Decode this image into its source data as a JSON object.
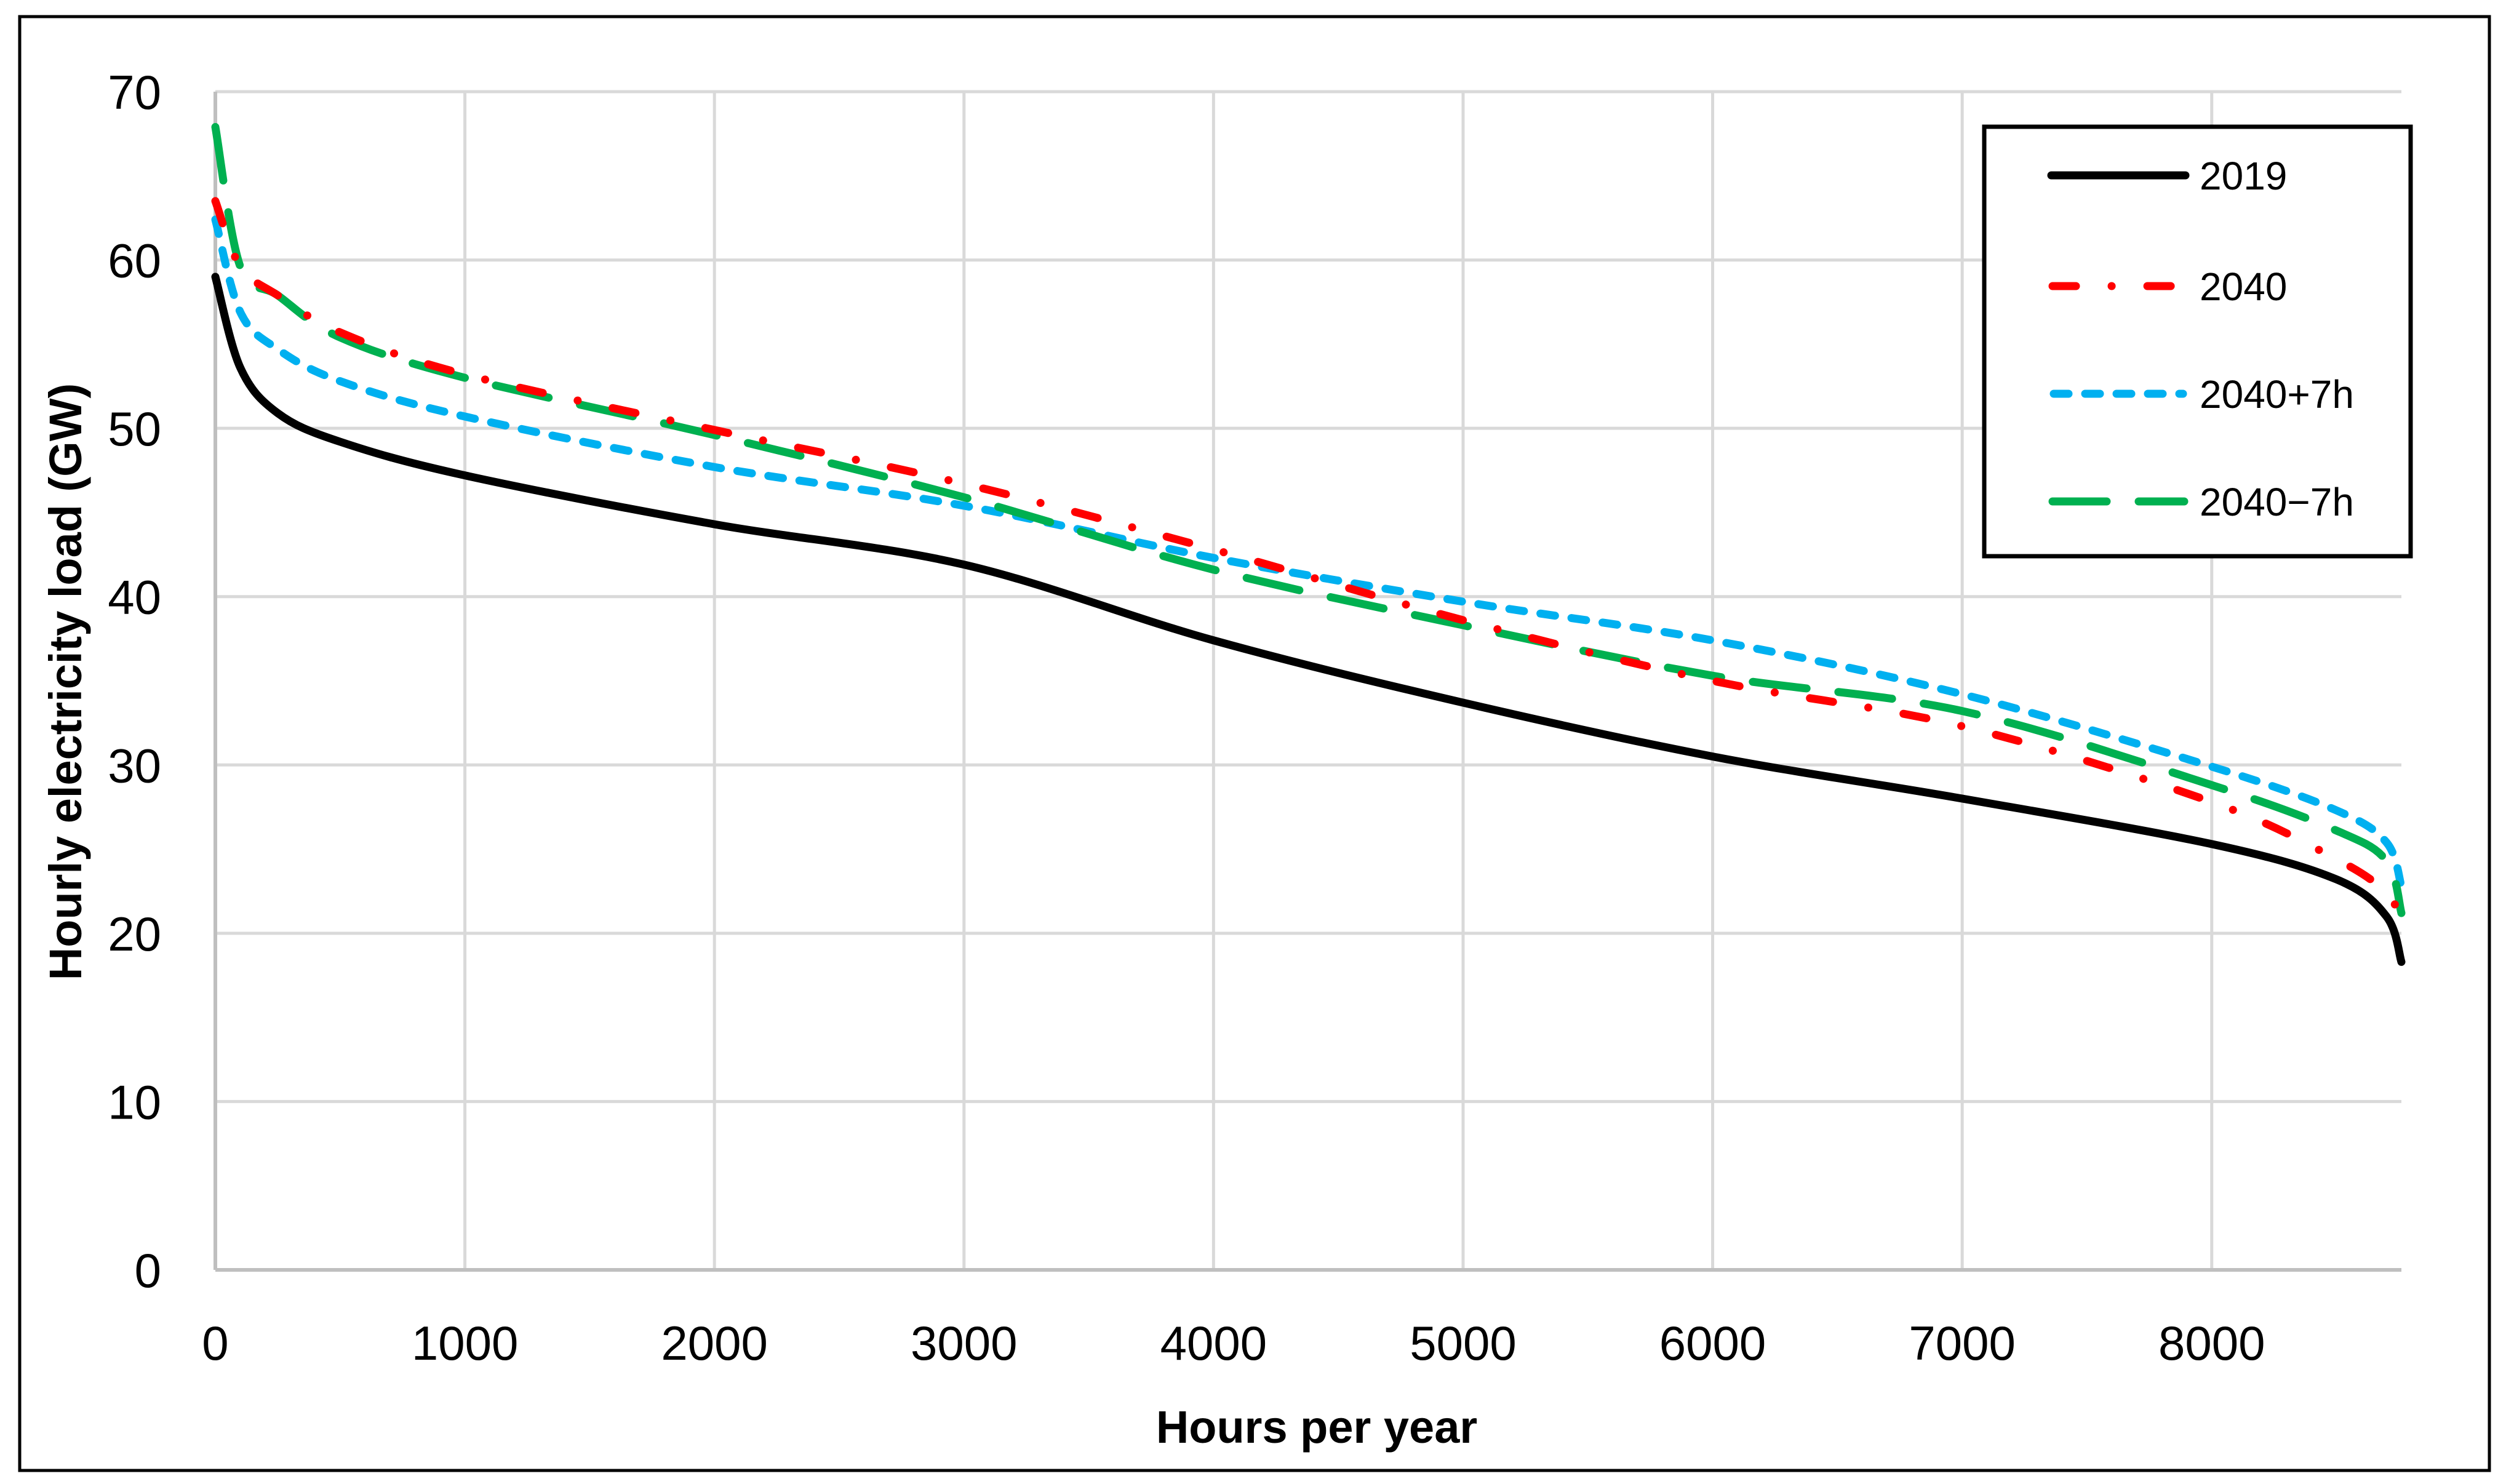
{
  "chart_data": {
    "type": "line",
    "title": "",
    "xlabel": "Hours per year",
    "ylabel": "Hourly electricity load (GW)",
    "xlim": [
      0,
      8760
    ],
    "ylim": [
      0,
      70
    ],
    "x_ticks": [
      0,
      1000,
      2000,
      3000,
      4000,
      5000,
      6000,
      7000,
      8000
    ],
    "y_ticks": [
      0,
      10,
      20,
      30,
      40,
      50,
      60,
      70
    ],
    "grid": true,
    "legend_position": "upper right (inside)",
    "x": [
      0,
      100,
      250,
      500,
      1000,
      2000,
      3000,
      4000,
      5000,
      6000,
      7000,
      8000,
      8500,
      8700,
      8760
    ],
    "series": [
      {
        "name": "2019",
        "color": "#000000",
        "style": "solid",
        "values": [
          59.0,
          53.6,
          50.9,
          49.2,
          47.2,
          44.3,
          41.9,
          37.4,
          33.7,
          30.5,
          28.0,
          25.3,
          23.2,
          21.0,
          18.3
        ]
      },
      {
        "name": "2040",
        "color": "#FF0000",
        "style": "dash-dot",
        "values": [
          63.5,
          59.6,
          57.9,
          55.7,
          53.2,
          49.9,
          46.7,
          42.8,
          38.6,
          35.0,
          32.3,
          27.8,
          24.4,
          22.4,
          20.7
        ]
      },
      {
        "name": "2040+7h",
        "color": "#00B0F0",
        "style": "short-dash",
        "values": [
          62.4,
          56.9,
          54.7,
          52.8,
          50.7,
          47.7,
          45.4,
          42.3,
          39.7,
          37.4,
          34.2,
          29.9,
          27.3,
          25.4,
          22.8
        ]
      },
      {
        "name": "2040−7h",
        "color": "#00B050",
        "style": "long-dash",
        "values": [
          67.9,
          59.6,
          57.9,
          55.4,
          53.0,
          49.6,
          45.9,
          41.6,
          38.3,
          35.3,
          33.2,
          28.8,
          26.1,
          24.3,
          21.2
        ]
      }
    ]
  },
  "axes": {
    "x_title": "Hours per year",
    "y_title": "Hourly electricity load (GW)",
    "x_tick_labels": [
      "0",
      "1000",
      "2000",
      "3000",
      "4000",
      "5000",
      "6000",
      "7000",
      "8000"
    ],
    "y_tick_labels": [
      "0",
      "10",
      "20",
      "30",
      "40",
      "50",
      "60",
      "70"
    ]
  },
  "legend": {
    "items": [
      {
        "label": "2019"
      },
      {
        "label": "2040"
      },
      {
        "label": "2040+7h"
      },
      {
        "label": "2040−7h"
      }
    ]
  },
  "colors": {
    "grid": "#D9D9D9",
    "frame": "#000000",
    "s2019": "#000000",
    "s2040": "#FF0000",
    "s2040p7": "#00B0F0",
    "s2040m7": "#00B050"
  }
}
